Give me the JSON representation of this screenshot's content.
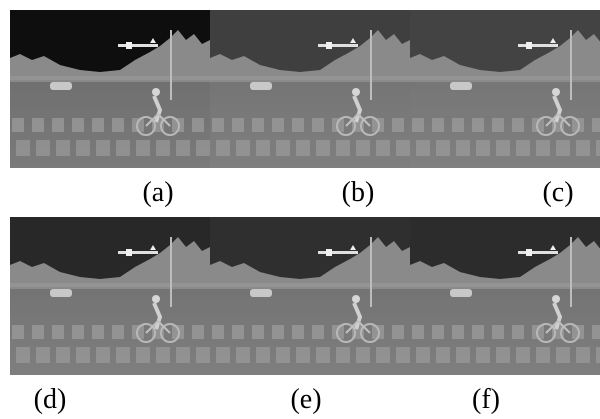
{
  "figure": {
    "panels": [
      {
        "label": "(a)",
        "sky": "#0e0e0e",
        "tone": "#7a7a7a"
      },
      {
        "label": "(b)",
        "sky": "#3f3f3f",
        "tone": "#8a8a8a"
      },
      {
        "label": "(c)",
        "sky": "#434343",
        "tone": "#8c8c8c"
      },
      {
        "label": "(d)",
        "sky": "#282828",
        "tone": "#868686"
      },
      {
        "label": "(e)",
        "sky": "#2f2f2f",
        "tone": "#878787"
      },
      {
        "label": "(f)",
        "sky": "#2c2c2c",
        "tone": "#888888"
      }
    ]
  }
}
